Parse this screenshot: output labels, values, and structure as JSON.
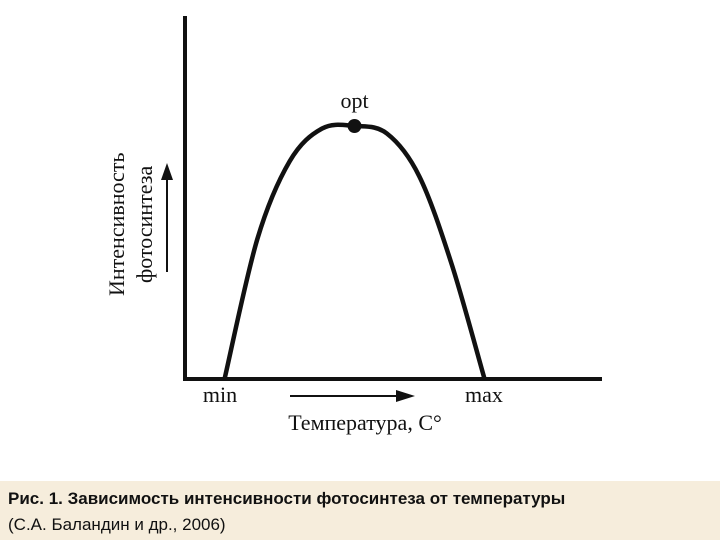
{
  "chart_data": {
    "type": "line",
    "title": "",
    "xlabel": "Температура, С°",
    "ylabel_line1": "Интенсивность",
    "ylabel_line2": "фотосинтеза",
    "x_ticks": [
      "min",
      "max"
    ],
    "peak_label": "opt",
    "series": [
      {
        "x": [
          0,
          0.125,
          0.25,
          0.375,
          0.5,
          0.625,
          0.75,
          0.875,
          1
        ],
        "y": [
          0,
          0.55,
          0.86,
          0.99,
          1,
          0.97,
          0.8,
          0.45,
          0
        ]
      }
    ],
    "peak": {
      "x": 0.5,
      "y": 1
    },
    "xlim": [
      0,
      1
    ],
    "ylim": [
      0,
      1
    ],
    "grid": false
  },
  "caption": {
    "title": "Рис. 1. Зависимость интенсивности фотосинтеза от температуры",
    "source": "(С.А. Баландин и др., 2006)"
  },
  "colors": {
    "ink": "#111111",
    "caption_bg": "#f6eddc"
  }
}
